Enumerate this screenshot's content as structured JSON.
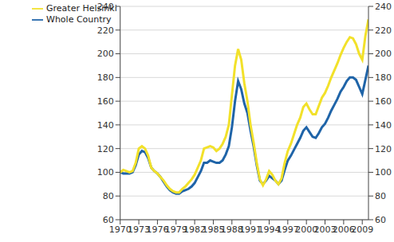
{
  "chart_data": {
    "type": "line",
    "x": [
      1970,
      1970.5,
      1971,
      1971.5,
      1972,
      1972.5,
      1973,
      1973.5,
      1974,
      1974.5,
      1975,
      1975.5,
      1976,
      1976.5,
      1977,
      1977.5,
      1978,
      1978.5,
      1979,
      1979.5,
      1980,
      1980.5,
      1981,
      1981.5,
      1982,
      1982.5,
      1983,
      1983.5,
      1984,
      1984.5,
      1985,
      1985.5,
      1986,
      1986.5,
      1987,
      1987.5,
      1988,
      1988.5,
      1989,
      1989.5,
      1990,
      1990.5,
      1991,
      1991.5,
      1992,
      1992.5,
      1993,
      1993.5,
      1994,
      1994.5,
      1995,
      1995.5,
      1996,
      1996.5,
      1997,
      1997.5,
      1998,
      1998.5,
      1999,
      1999.5,
      2000,
      2000.5,
      2001,
      2001.5,
      2002,
      2002.5,
      2003,
      2003.5,
      2004,
      2004.5,
      2005,
      2005.5,
      2006,
      2006.5,
      2007,
      2007.5,
      2008,
      2008.5,
      2009,
      2009.5,
      2010
    ],
    "series": [
      {
        "name": "Whole Country",
        "color": "#1f64a8",
        "values": [
          100,
          99,
          99,
          99,
          100,
          106,
          115,
          118,
          117,
          112,
          104,
          101,
          99,
          96,
          92,
          88,
          85,
          83,
          82,
          82,
          84,
          85,
          86,
          88,
          91,
          96,
          101,
          108,
          108,
          110,
          109,
          108,
          108,
          110,
          115,
          122,
          138,
          160,
          177,
          170,
          158,
          150,
          135,
          122,
          106,
          93,
          90,
          93,
          97,
          95,
          93,
          90,
          93,
          102,
          110,
          114,
          119,
          124,
          129,
          135,
          138,
          134,
          130,
          129,
          133,
          138,
          141,
          146,
          152,
          157,
          162,
          168,
          172,
          177,
          180,
          180,
          178,
          172,
          166,
          178,
          190
        ]
      },
      {
        "name": "Greater Helsinki",
        "color": "#f2e12a",
        "values": [
          100,
          102,
          101,
          100,
          101,
          108,
          120,
          122,
          120,
          114,
          104,
          101,
          99,
          96,
          93,
          89,
          86,
          84,
          83,
          83,
          86,
          88,
          91,
          94,
          98,
          104,
          110,
          120,
          121,
          122,
          121,
          118,
          120,
          124,
          130,
          140,
          165,
          190,
          204,
          195,
          175,
          160,
          140,
          125,
          108,
          94,
          89,
          94,
          101,
          98,
          93,
          90,
          95,
          108,
          118,
          124,
          132,
          140,
          146,
          155,
          158,
          153,
          149,
          149,
          156,
          163,
          167,
          173,
          180,
          186,
          192,
          199,
          205,
          210,
          214,
          213,
          208,
          200,
          195,
          215,
          229
        ]
      }
    ],
    "xlim": [
      1970,
      2010
    ],
    "xticks": [
      1970,
      1973,
      1976,
      1979,
      1982,
      1985,
      1988,
      1991,
      1994,
      1997,
      2000,
      2003,
      2006,
      2009
    ],
    "ylim": [
      60,
      240
    ],
    "yticks": [
      60,
      80,
      100,
      120,
      140,
      160,
      180,
      200,
      220,
      240
    ],
    "y2lim": [
      60,
      240
    ],
    "y2ticks": [
      60,
      80,
      100,
      120,
      140,
      160,
      180,
      200,
      220,
      240
    ],
    "grid": true,
    "legend": "upper left"
  }
}
